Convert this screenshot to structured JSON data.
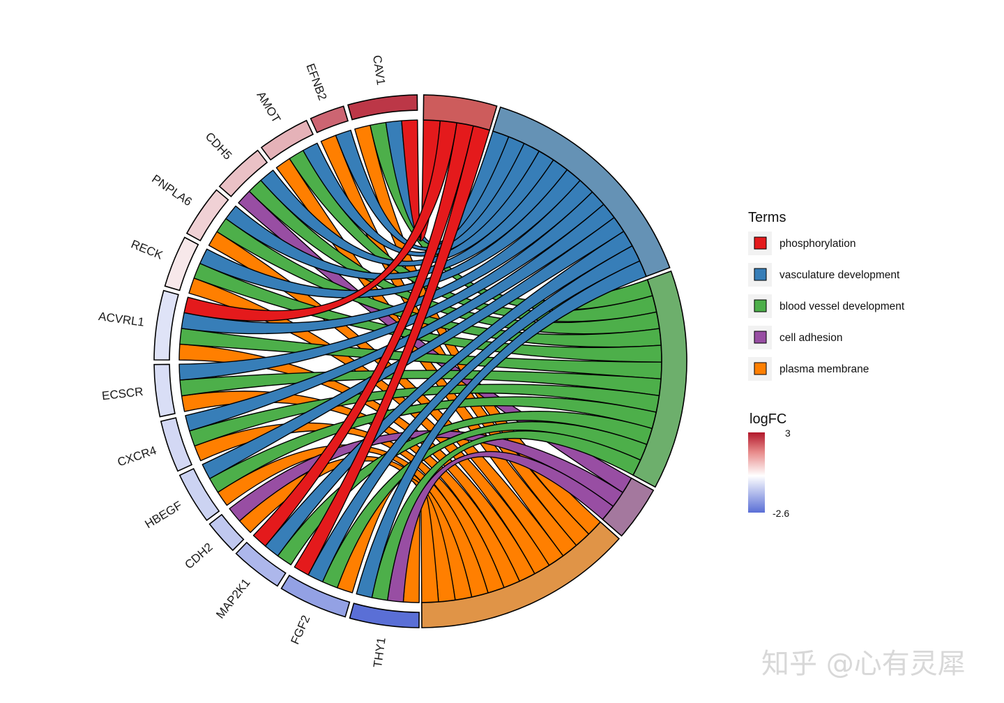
{
  "chart_data": {
    "type": "chord",
    "genes": [
      {
        "name": "CAV1",
        "logFC": 2.6,
        "terms": [
          "phosphorylation",
          "vasculature development",
          "blood vessel development",
          "plasma membrane"
        ]
      },
      {
        "name": "EFNB2",
        "logFC": 2.0,
        "terms": [
          "vasculature development",
          "plasma membrane"
        ]
      },
      {
        "name": "AMOT",
        "logFC": 1.0,
        "terms": [
          "vasculature development",
          "blood vessel development",
          "plasma membrane"
        ]
      },
      {
        "name": "CDH5",
        "logFC": 0.8,
        "terms": [
          "vasculature development",
          "blood vessel development",
          "cell adhesion"
        ]
      },
      {
        "name": "PNPLA6",
        "logFC": 0.6,
        "terms": [
          "vasculature development",
          "blood vessel development",
          "plasma membrane"
        ]
      },
      {
        "name": "RECK",
        "logFC": 0.3,
        "terms": [
          "vasculature development",
          "blood vessel development",
          "plasma membrane"
        ]
      },
      {
        "name": "ACVRL1",
        "logFC": -0.5,
        "terms": [
          "phosphorylation",
          "vasculature development",
          "blood vessel development",
          "plasma membrane"
        ]
      },
      {
        "name": "ECSCR",
        "logFC": -0.6,
        "terms": [
          "vasculature development",
          "blood vessel development",
          "plasma membrane"
        ]
      },
      {
        "name": "CXCR4",
        "logFC": -0.7,
        "terms": [
          "vasculature development",
          "blood vessel development",
          "plasma membrane"
        ]
      },
      {
        "name": "HBEGF",
        "logFC": -0.8,
        "terms": [
          "vasculature development",
          "blood vessel development",
          "plasma membrane"
        ]
      },
      {
        "name": "CDH2",
        "logFC": -1.0,
        "terms": [
          "cell adhesion",
          "plasma membrane"
        ]
      },
      {
        "name": "MAP2K1",
        "logFC": -1.3,
        "terms": [
          "phosphorylation",
          "vasculature development",
          "blood vessel development"
        ]
      },
      {
        "name": "FGF2",
        "logFC": -1.7,
        "terms": [
          "phosphorylation",
          "vasculature development",
          "blood vessel development",
          "plasma membrane"
        ]
      },
      {
        "name": "THY1",
        "logFC": -2.6,
        "terms": [
          "vasculature development",
          "blood vessel development",
          "cell adhesion",
          "plasma membrane"
        ]
      }
    ],
    "terms": [
      {
        "name": "phosphorylation",
        "color": "#E41A1C",
        "block_color": "#CD5C5C"
      },
      {
        "name": "vasculature development",
        "color": "#377EB8",
        "block_color": "#6592B5"
      },
      {
        "name": "blood vessel development",
        "color": "#4DAF4A",
        "block_color": "#6DAF6C"
      },
      {
        "name": "cell adhesion",
        "color": "#984EA3",
        "block_color": "#A4789E"
      },
      {
        "name": "plasma membrane",
        "color": "#FF7F00",
        "block_color": "#E09447"
      }
    ],
    "legend": {
      "terms_title": "Terms",
      "logfc_title": "logFC",
      "logfc_max": 3,
      "logfc_min": -2.6,
      "logfc_max_label": "3",
      "logfc_min_label": "-2.6",
      "colors": {
        "high": "#B2182B",
        "mid": "#FFFFFF",
        "low": "#5A6FD6"
      }
    }
  },
  "watermark": "知乎 @心有灵犀"
}
